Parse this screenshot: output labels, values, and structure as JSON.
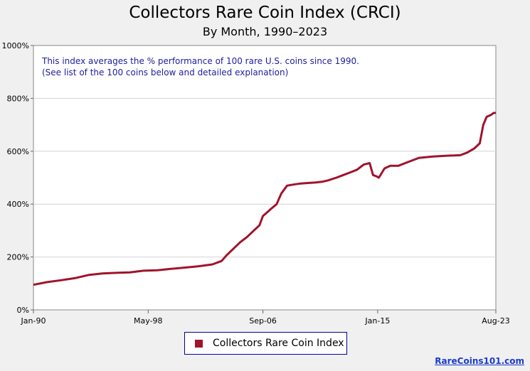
{
  "chart_data": {
    "type": "line",
    "title": "Collectors Rare Coin Index (CRCI)",
    "subtitle": "By Month, 1990–2023",
    "annotation": [
      "This index averages the % performance of 100 rare U.S. coins since 1990.",
      "(See list of the 100 coins below and detailed explanation)"
    ],
    "ylim": [
      0,
      1000
    ],
    "y_ticks": [
      "0%",
      "200%",
      "400%",
      "600%",
      "800%",
      "1000%"
    ],
    "x_ticks": [
      "Jan-90",
      "May-98",
      "Sep-06",
      "Jan-15",
      "Aug-23"
    ],
    "grid": true,
    "legend_position": "bottom-center",
    "colors": {
      "line": "#a0132b",
      "annotation": "#2020a0",
      "credit": "#1a3ccc"
    },
    "series": [
      {
        "name": "Collectors Rare Coin Index",
        "x": [
          "Jan-90",
          "Jan-91",
          "Jan-92",
          "Jan-93",
          "Jan-94",
          "Jan-95",
          "Jan-96",
          "Jan-97",
          "Jan-98",
          "Jan-99",
          "Jan-00",
          "Jan-01",
          "Jan-02",
          "Jan-03",
          "Sep-03",
          "Jan-04",
          "Jul-04",
          "Jan-05",
          "Jul-05",
          "Jan-06",
          "Jun-06",
          "Sep-06",
          "Jan-07",
          "Apr-07",
          "Sep-07",
          "Jan-08",
          "Jun-08",
          "Jan-09",
          "Jun-09",
          "Jan-10",
          "Jul-10",
          "Jan-11",
          "Jun-11",
          "Jan-12",
          "Jul-12",
          "Jan-13",
          "Jul-13",
          "Jan-14",
          "Jun-14",
          "Sep-14",
          "Dec-14",
          "Feb-15",
          "Jul-15",
          "Dec-15",
          "Jul-16",
          "Jan-17",
          "Jan-18",
          "Jan-19",
          "Jan-20",
          "Jan-21",
          "Jul-21",
          "Jan-22",
          "Jun-22",
          "Sep-22",
          "Dec-22",
          "Apr-23",
          "Jun-23",
          "Aug-23"
        ],
        "values": [
          95,
          105,
          112,
          120,
          132,
          138,
          140,
          142,
          148,
          150,
          155,
          160,
          165,
          172,
          185,
          205,
          230,
          255,
          275,
          300,
          320,
          355,
          370,
          382,
          400,
          440,
          470,
          475,
          478,
          480,
          482,
          485,
          490,
          500,
          510,
          520,
          530,
          550,
          555,
          510,
          505,
          500,
          535,
          545,
          545,
          555,
          575,
          580,
          583,
          585,
          595,
          610,
          630,
          700,
          730,
          738,
          745,
          745
        ]
      }
    ]
  },
  "legend": {
    "label": "Collectors Rare Coin Index"
  },
  "credit": "RareCoins101.com"
}
